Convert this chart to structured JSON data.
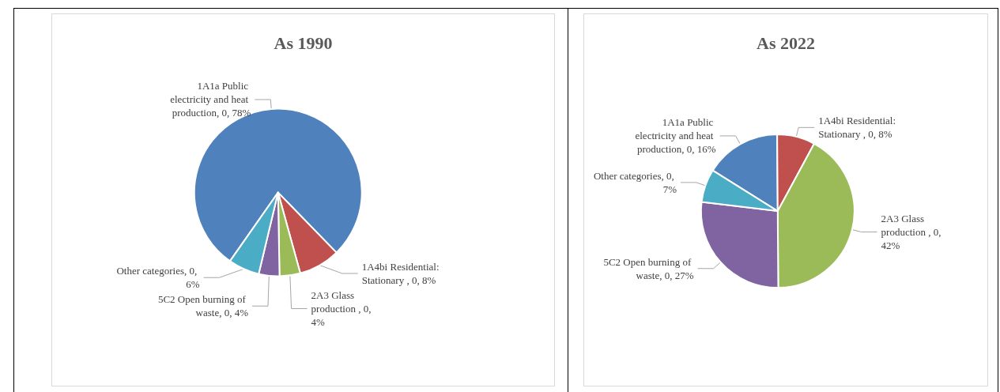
{
  "chart_data": [
    {
      "type": "pie",
      "title": "As 1990",
      "categories": [
        "1A1a Public electricity and heat production",
        "1A4bi Residential: Stationary ",
        "2A3 Glass production ",
        "5C2 Open burning of waste",
        "Other categories"
      ],
      "values": [
        78,
        8,
        4,
        4,
        6
      ],
      "value_labels": [
        "0, 78%",
        "0, 8%",
        "0, 4%",
        "0, 4%",
        "0, 6%"
      ],
      "colors": [
        "#4f81bd",
        "#c0504d",
        "#9bbb59",
        "#8064a2",
        "#4bacc6"
      ],
      "legend": false
    },
    {
      "type": "pie",
      "title": "As 2022",
      "categories": [
        "1A1a Public electricity and heat production",
        "1A4bi Residential: Stationary ",
        "2A3 Glass production ",
        "5C2 Open burning of waste",
        "Other categories"
      ],
      "values": [
        16,
        8,
        42,
        27,
        7
      ],
      "value_labels": [
        "0, 16%",
        "0, 8%",
        "0, 42%",
        "0, 27%",
        "0, 7%"
      ],
      "colors": [
        "#4f81bd",
        "#c0504d",
        "#9bbb59",
        "#8064a2",
        "#4bacc6"
      ],
      "legend": false
    }
  ]
}
